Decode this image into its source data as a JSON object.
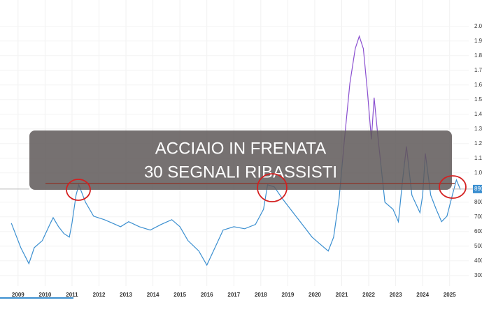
{
  "chart_data": {
    "type": "line",
    "title": "ACCIAIO IN FRENATA",
    "subtitle": "30 SEGNALI RIBASSISTI",
    "x": [
      2008.75,
      2008.95,
      2009.1,
      2009.4,
      2009.6,
      2009.9,
      2010.2,
      2010.3,
      2010.5,
      2010.7,
      2010.9,
      2011.0,
      2011.15,
      2011.25,
      2011.5,
      2011.8,
      2012.2,
      2012.5,
      2012.8,
      2013.1,
      2013.5,
      2013.9,
      2014.3,
      2014.7,
      2015.0,
      2015.3,
      2015.7,
      2016.0,
      2016.3,
      2016.6,
      2017.0,
      2017.4,
      2017.8,
      2018.1,
      2018.25,
      2018.5,
      2018.8,
      2019.1,
      2019.5,
      2019.9,
      2020.2,
      2020.5,
      2020.7,
      2020.9,
      2021.1,
      2021.3,
      2021.5,
      2021.65,
      2021.8,
      2021.95,
      2022.1,
      2022.2,
      2022.35,
      2022.6,
      2022.9,
      2023.1,
      2023.25,
      2023.4,
      2023.6,
      2023.9,
      2024.0,
      2024.1,
      2024.3,
      2024.5,
      2024.7,
      2024.9,
      2025.1,
      2025.25,
      2025.4
    ],
    "series": [
      {
        "color": "#3b8fd0",
        "high_color": "#8a4fd0",
        "values": [
          657,
          562,
          490,
          381,
          490,
          538,
          657,
          695,
          633,
          586,
          562,
          657,
          848,
          919,
          800,
          705,
          681,
          657,
          633,
          667,
          633,
          610,
          648,
          681,
          633,
          538,
          467,
          371,
          490,
          610,
          633,
          619,
          648,
          752,
          919,
          905,
          824,
          752,
          657,
          562,
          514,
          467,
          562,
          824,
          1229,
          1610,
          1848,
          1933,
          1848,
          1562,
          1229,
          1514,
          1229,
          800,
          752,
          667,
          943,
          1181,
          848,
          729,
          848,
          1133,
          848,
          752,
          667,
          705,
          848,
          952,
          886
        ]
      }
    ],
    "xlim": [
      2008.33,
      2026.2
    ],
    "xticks": [
      2009,
      2010,
      2011,
      2012,
      2013,
      2014,
      2015,
      2016,
      2017,
      2018,
      2019,
      2020,
      2021,
      2022,
      2023,
      2024,
      2025
    ],
    "ylim": [
      0,
      2180
    ],
    "yticks": [
      {
        "value": 2000,
        "label": "2.0"
      },
      {
        "value": 1900,
        "label": "1.9"
      },
      {
        "value": 1800,
        "label": "1.8"
      },
      {
        "value": 1700,
        "label": "1.7"
      },
      {
        "value": 1600,
        "label": "1.6"
      },
      {
        "value": 1500,
        "label": "1.5"
      },
      {
        "value": 1400,
        "label": "1.4"
      },
      {
        "value": 1300,
        "label": "1.3"
      },
      {
        "value": 1200,
        "label": "1.2"
      },
      {
        "value": 1100,
        "label": "1.1"
      },
      {
        "value": 1000,
        "label": "1.0"
      },
      800,
      700,
      600,
      500,
      400,
      300
    ],
    "reference_line": 929,
    "last_price": 890,
    "grid": true
  }
}
